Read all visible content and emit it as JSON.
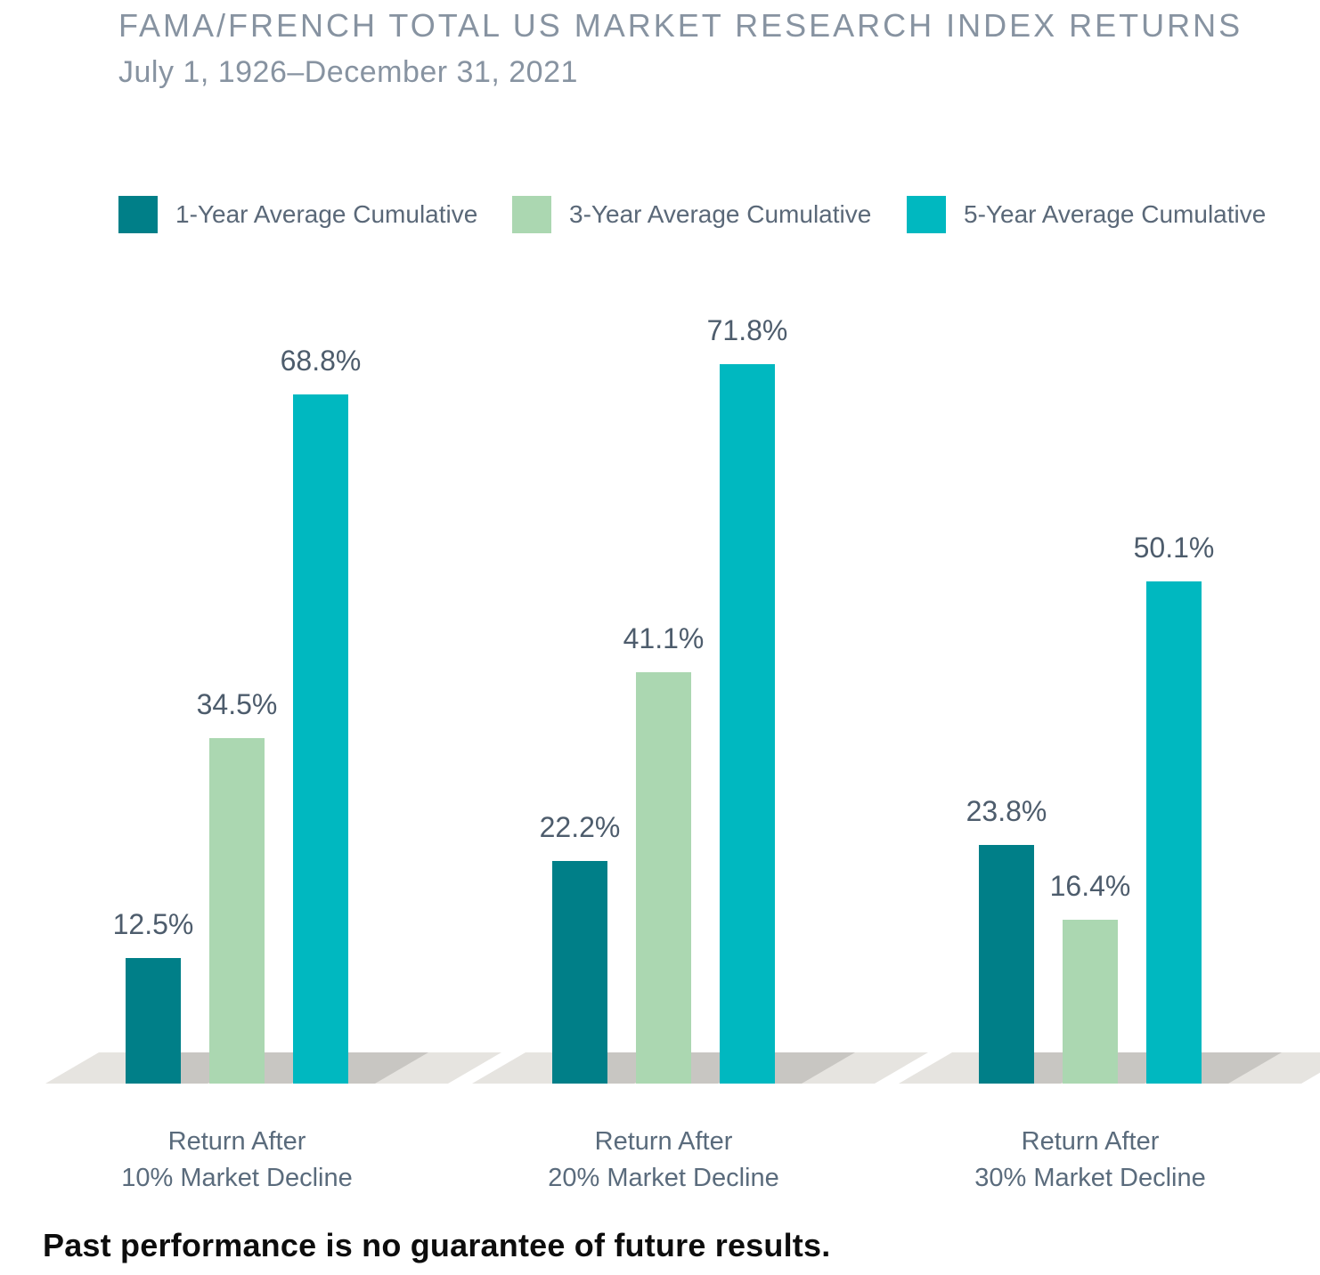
{
  "title": "FAMA/FRENCH TOTAL US MARKET RESEARCH INDEX RETURNS",
  "subtitle": "July 1, 1926–December 31, 2021",
  "disclaimer": "Past performance is no guarantee of future results.",
  "colors": {
    "series_1yr": "#007f88",
    "series_3yr": "#abd7b1",
    "series_5yr": "#00b8c0",
    "floor": "#e6e4e0",
    "floor_shadow": "#c8c6c2",
    "title_text": "#8793a1",
    "value_label_text": "#4d5c6c",
    "axis_label_text": "#5a6b7c",
    "legend_text": "#5a6878",
    "disclaimer_text": "#0d0d0d"
  },
  "legend": {
    "items": [
      {
        "label": "1-Year Average Cumulative",
        "color": "#007f88"
      },
      {
        "label": "3-Year Average Cumulative",
        "color": "#abd7b1"
      },
      {
        "label": "5-Year Average Cumulative",
        "color": "#00b8c0"
      }
    ]
  },
  "chart_data": {
    "type": "bar",
    "title": "FAMA/FRENCH TOTAL US MARKET RESEARCH INDEX RETURNS",
    "subtitle": "July 1, 1926–December 31, 2021",
    "categories": [
      "Return After 10% Market Decline",
      "Return After 20% Market Decline",
      "Return After 30% Market Decline"
    ],
    "category_lines": [
      [
        "Return After",
        "10% Market Decline"
      ],
      [
        "Return After",
        "20% Market Decline"
      ],
      [
        "Return After",
        "30% Market Decline"
      ]
    ],
    "series": [
      {
        "name": "1-Year Average Cumulative",
        "color": "#007f88",
        "values": [
          12.5,
          22.2,
          23.8
        ],
        "display": [
          "12.5%",
          "22.2%",
          "23.8%"
        ]
      },
      {
        "name": "3-Year Average Cumulative",
        "color": "#abd7b1",
        "values": [
          34.5,
          41.1,
          16.4
        ],
        "display": [
          "34.5%",
          "41.1%",
          "16.4%"
        ]
      },
      {
        "name": "5-Year Average Cumulative",
        "color": "#00b8c0",
        "values": [
          68.8,
          71.8,
          50.1
        ],
        "display": [
          "68.8%",
          "71.8%",
          "50.1%"
        ]
      }
    ],
    "value_format": "percent",
    "ylim": [
      0,
      80
    ],
    "grid": false,
    "axes_shown": false,
    "legend_position": "top",
    "floor_effect": "3d-perspective-shadow"
  }
}
